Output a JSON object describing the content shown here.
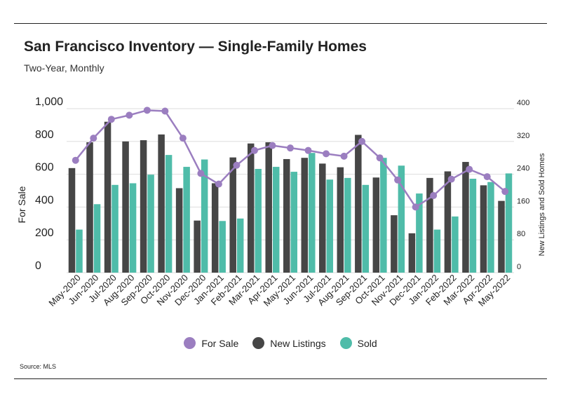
{
  "title": "San Francisco Inventory — Single-Family Homes",
  "subtitle": "Two-Year, Monthly",
  "source": "Source:  MLS",
  "colors": {
    "for_sale": "#9b7ec0",
    "new_listings": "#464646",
    "sold": "#4fbca9",
    "grid": "#dddddd"
  },
  "chart_data": {
    "type": "bar",
    "categories": [
      "May-2020",
      "Jun-2020",
      "Jul-2020",
      "Aug-2020",
      "Sep-2020",
      "Oct-2020",
      "Nov-2020",
      "Dec-2020",
      "Jan-2021",
      "Feb-2021",
      "Mar-2021",
      "Apr-2021",
      "May-2021",
      "Jun-2021",
      "Jul-2021",
      "Aug-2021",
      "Sep-2021",
      "Oct-2021",
      "Nov-2021",
      "Dec-2021",
      "Jan-2022",
      "Feb-2022",
      "Mar-2022",
      "Apr-2022",
      "May-2022"
    ],
    "left_axis": {
      "label": "For Sale",
      "min": 0,
      "max": 1000,
      "ticks": [
        "0",
        "200",
        "400",
        "600",
        "800",
        "1,000"
      ]
    },
    "right_axis": {
      "label": "New Listings and Sold Homes",
      "min": 0,
      "max": 400,
      "ticks": [
        "0",
        "80",
        "160",
        "240",
        "320",
        "400"
      ]
    },
    "grid": true,
    "legend": "bottom-center",
    "series": [
      {
        "name": "For Sale",
        "type": "line",
        "axis": "left",
        "values": [
          685,
          820,
          935,
          960,
          990,
          985,
          820,
          605,
          540,
          655,
          745,
          775,
          760,
          745,
          725,
          710,
          800,
          700,
          565,
          400,
          470,
          570,
          630,
          585,
          495
        ]
      },
      {
        "name": "New Listings",
        "type": "bar",
        "axis": "right",
        "values": [
          255,
          318,
          368,
          320,
          323,
          337,
          206,
          127,
          218,
          281,
          315,
          318,
          277,
          280,
          266,
          257,
          336,
          232,
          140,
          96,
          231,
          247,
          270,
          213,
          175
        ]
      },
      {
        "name": "Sold",
        "type": "bar",
        "axis": "right",
        "values": [
          105,
          167,
          214,
          218,
          239,
          287,
          258,
          276,
          126,
          132,
          253,
          258,
          246,
          292,
          227,
          231,
          214,
          280,
          261,
          193,
          105,
          137,
          229,
          221,
          242
        ]
      }
    ]
  }
}
